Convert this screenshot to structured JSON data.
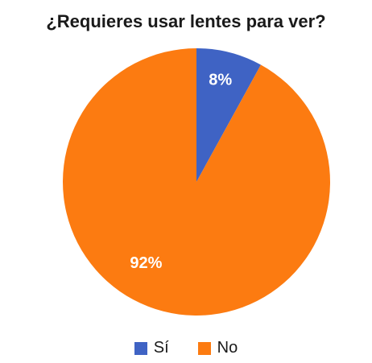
{
  "chart_data": {
    "type": "pie",
    "title": "¿Requieres usar lentes para ver?",
    "categories": [
      "Sí",
      "No"
    ],
    "values": [
      8,
      92
    ],
    "labels": [
      "8%",
      "92%"
    ],
    "colors": [
      "#3f63c4",
      "#fc7b11"
    ],
    "legend_position": "bottom"
  }
}
